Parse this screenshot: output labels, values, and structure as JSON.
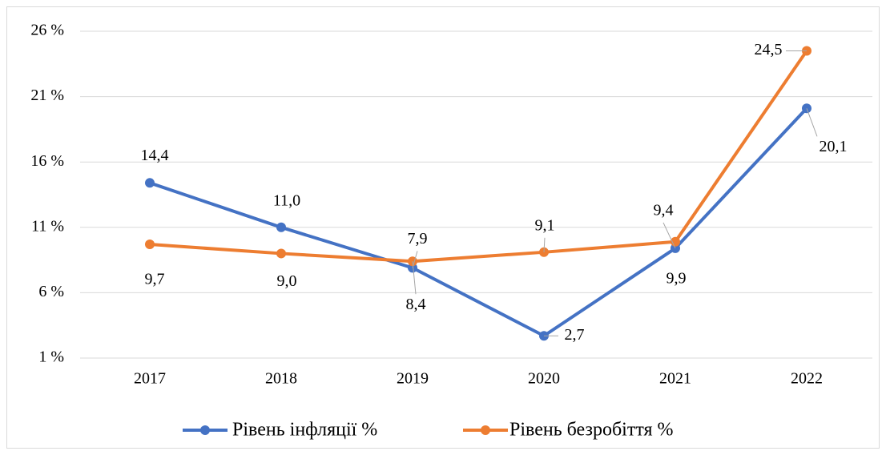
{
  "chart_data": {
    "type": "line",
    "categories": [
      "2017",
      "2018",
      "2019",
      "2020",
      "2021",
      "2022"
    ],
    "series": [
      {
        "name": "Рівень інфляції %",
        "color": "#4472c4",
        "values": [
          14.4,
          11.0,
          7.9,
          2.7,
          9.4,
          20.1
        ],
        "value_labels": [
          "14,4",
          "11,0",
          "7,9",
          "2,7",
          "9,4",
          "20,1"
        ]
      },
      {
        "name": "Рівень безробіття %",
        "color": "#ed7d31",
        "values": [
          9.7,
          9.0,
          8.4,
          9.1,
          9.9,
          24.5
        ],
        "value_labels": [
          "9,7",
          "9,0",
          "8,4",
          "9,1",
          "9,9",
          "24,5"
        ]
      }
    ],
    "ylim": [
      1,
      26
    ],
    "yticks": [
      {
        "value": 1,
        "label": "1 %"
      },
      {
        "value": 6,
        "label": "6 %"
      },
      {
        "value": 11,
        "label": "11 %"
      },
      {
        "value": 16,
        "label": "16 %"
      },
      {
        "value": 21,
        "label": "21 %"
      },
      {
        "value": 26,
        "label": "26 %"
      }
    ],
    "grid": true,
    "legend": "bottom"
  }
}
